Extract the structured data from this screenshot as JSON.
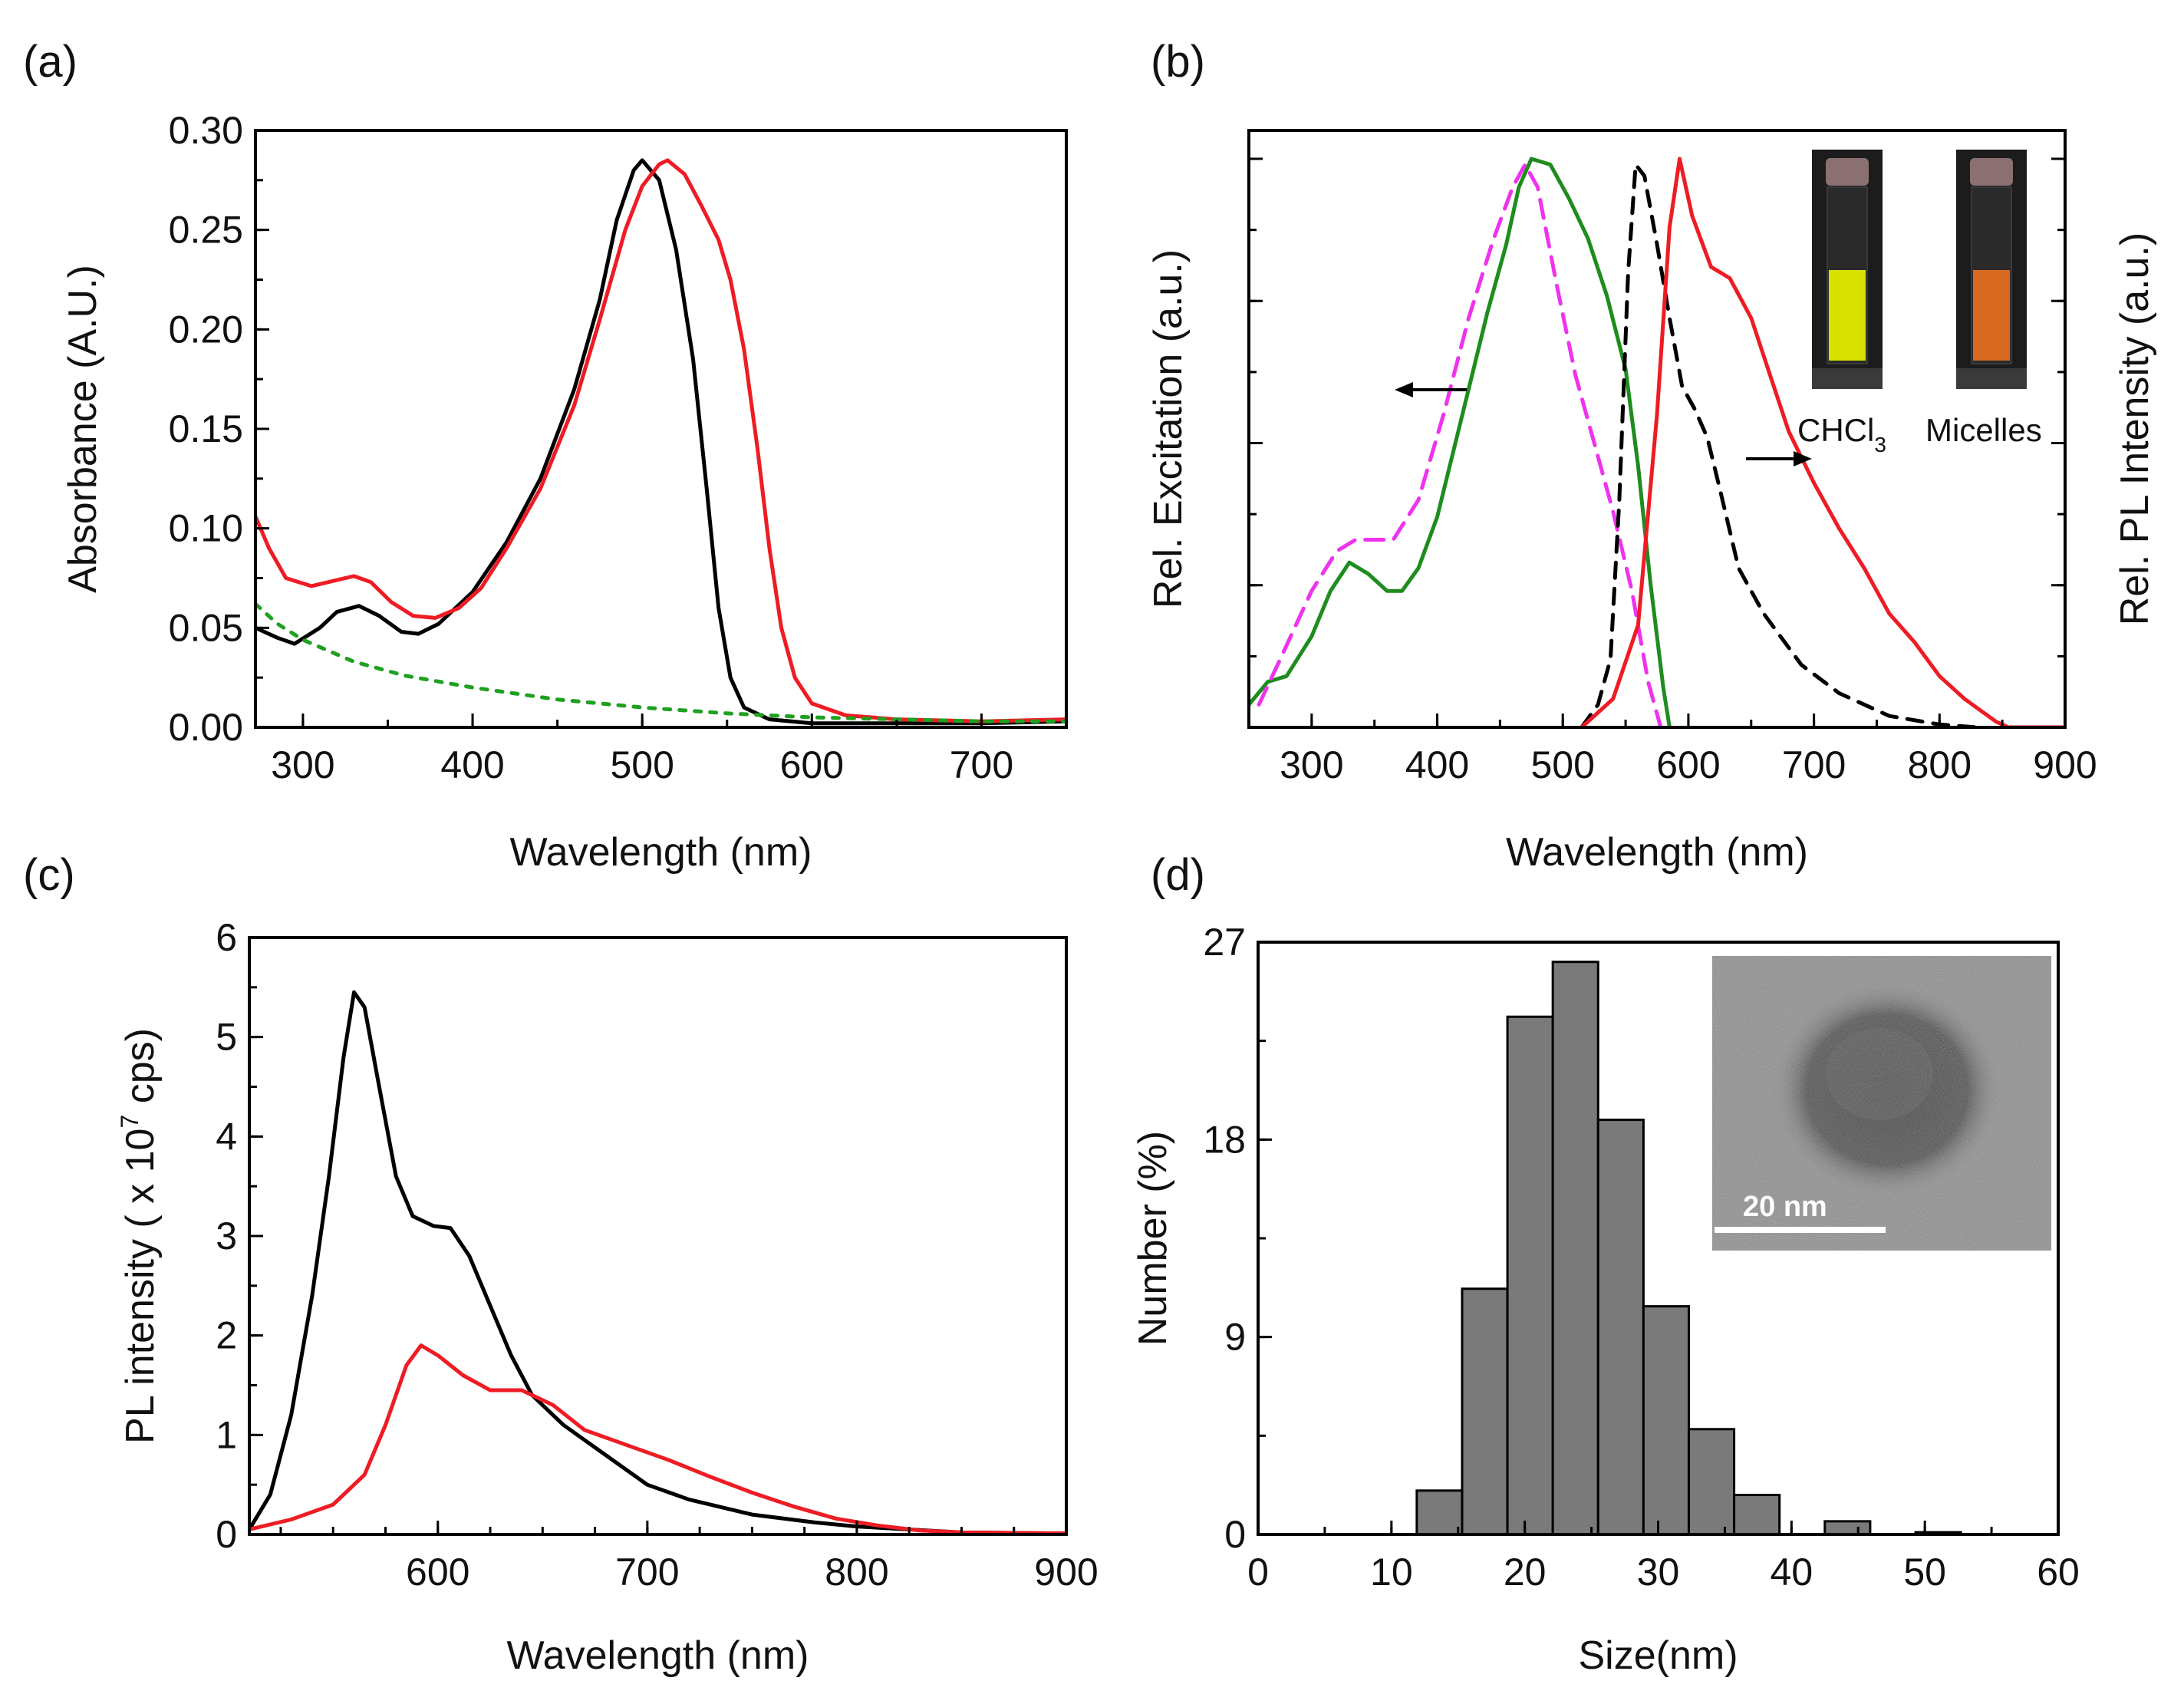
{
  "panels": {
    "a": {
      "label": "(a)"
    },
    "b": {
      "label": "(b)"
    },
    "c": {
      "label": "(c)"
    },
    "d": {
      "label": "(d)"
    }
  },
  "colors": {
    "black": "#000000",
    "red": "#ee1c24",
    "green": "#1e8c1e",
    "magenta": "#ee33ee",
    "green_dotted": "#20a020",
    "bar_fill": "#7a7a7a",
    "vial_yellow": "#d8e000",
    "vial_orange": "#d86a20"
  },
  "chart_data": [
    {
      "id": "a",
      "type": "line",
      "xlabel": "Wavelength (nm)",
      "ylabel": "Absorbance (A.U.)",
      "xlim": [
        272,
        750
      ],
      "ylim": [
        0,
        0.3
      ],
      "xticks": [
        300,
        400,
        500,
        600,
        700
      ],
      "yticks": [
        0.0,
        0.05,
        0.1,
        0.15,
        0.2,
        0.25,
        0.3
      ],
      "ytick_labels": [
        "0.00",
        "0.05",
        "0.10",
        "0.15",
        "0.20",
        "0.25",
        "0.30"
      ],
      "series": [
        {
          "name": "black",
          "color": "#000000",
          "dash": "",
          "points": [
            [
              272,
              0.05
            ],
            [
              285,
              0.045
            ],
            [
              295,
              0.042
            ],
            [
              310,
              0.05
            ],
            [
              320,
              0.058
            ],
            [
              333,
              0.061
            ],
            [
              345,
              0.056
            ],
            [
              358,
              0.048
            ],
            [
              368,
              0.047
            ],
            [
              380,
              0.052
            ],
            [
              400,
              0.068
            ],
            [
              420,
              0.093
            ],
            [
              440,
              0.125
            ],
            [
              460,
              0.17
            ],
            [
              475,
              0.215
            ],
            [
              485,
              0.255
            ],
            [
              495,
              0.28
            ],
            [
              500,
              0.285
            ],
            [
              510,
              0.275
            ],
            [
              520,
              0.24
            ],
            [
              530,
              0.185
            ],
            [
              538,
              0.12
            ],
            [
              545,
              0.06
            ],
            [
              552,
              0.025
            ],
            [
              560,
              0.01
            ],
            [
              575,
              0.004
            ],
            [
              600,
              0.002
            ],
            [
              700,
              0.002
            ],
            [
              750,
              0.003
            ]
          ]
        },
        {
          "name": "red",
          "color": "#ee1c24",
          "dash": "",
          "points": [
            [
              272,
              0.106
            ],
            [
              280,
              0.09
            ],
            [
              290,
              0.075
            ],
            [
              305,
              0.071
            ],
            [
              320,
              0.074
            ],
            [
              330,
              0.076
            ],
            [
              340,
              0.073
            ],
            [
              352,
              0.063
            ],
            [
              365,
              0.056
            ],
            [
              378,
              0.055
            ],
            [
              392,
              0.06
            ],
            [
              405,
              0.07
            ],
            [
              420,
              0.09
            ],
            [
              440,
              0.12
            ],
            [
              460,
              0.162
            ],
            [
              475,
              0.205
            ],
            [
              490,
              0.25
            ],
            [
              500,
              0.272
            ],
            [
              510,
              0.283
            ],
            [
              515,
              0.285
            ],
            [
              525,
              0.278
            ],
            [
              535,
              0.262
            ],
            [
              545,
              0.245
            ],
            [
              552,
              0.225
            ],
            [
              560,
              0.19
            ],
            [
              568,
              0.14
            ],
            [
              575,
              0.09
            ],
            [
              582,
              0.05
            ],
            [
              590,
              0.025
            ],
            [
              600,
              0.012
            ],
            [
              620,
              0.006
            ],
            [
              650,
              0.004
            ],
            [
              700,
              0.003
            ],
            [
              750,
              0.004
            ]
          ]
        },
        {
          "name": "green-dotted",
          "color": "#20a020",
          "dash": "8,12",
          "points": [
            [
              272,
              0.062
            ],
            [
              285,
              0.052
            ],
            [
              300,
              0.044
            ],
            [
              330,
              0.033
            ],
            [
              360,
              0.026
            ],
            [
              400,
              0.02
            ],
            [
              450,
              0.014
            ],
            [
              500,
              0.01
            ],
            [
              550,
              0.007
            ],
            [
              600,
              0.005
            ],
            [
              650,
              0.004
            ],
            [
              700,
              0.003
            ],
            [
              750,
              0.003
            ]
          ]
        }
      ]
    },
    {
      "id": "b",
      "type": "line",
      "xlabel": "Wavelength (nm)",
      "ylabel": "Rel. Excitation (a.u.)",
      "ylabel_right": "Rel. PL Intensity (a.u.)",
      "xlim": [
        250,
        900
      ],
      "ylim": [
        0,
        1.05
      ],
      "xticks": [
        300,
        400,
        500,
        600,
        700,
        800,
        900
      ],
      "yticks_unlabeled": [
        0,
        0.25,
        0.5,
        0.75,
        1.0
      ],
      "annotations": {
        "chcl3": "CHCl",
        "chcl3_sub": "3",
        "micelles": "Micelles"
      },
      "series": [
        {
          "name": "green",
          "color": "#1e8c1e",
          "dash": "",
          "points": [
            [
              250,
              0.04
            ],
            [
              265,
              0.08
            ],
            [
              280,
              0.09
            ],
            [
              300,
              0.16
            ],
            [
              315,
              0.24
            ],
            [
              330,
              0.29
            ],
            [
              345,
              0.27
            ],
            [
              360,
              0.24
            ],
            [
              372,
              0.24
            ],
            [
              385,
              0.28
            ],
            [
              400,
              0.37
            ],
            [
              420,
              0.55
            ],
            [
              440,
              0.73
            ],
            [
              455,
              0.85
            ],
            [
              465,
              0.95
            ],
            [
              475,
              1.0
            ],
            [
              490,
              0.99
            ],
            [
              505,
              0.93
            ],
            [
              520,
              0.86
            ],
            [
              535,
              0.76
            ],
            [
              550,
              0.63
            ],
            [
              560,
              0.46
            ],
            [
              570,
              0.25
            ],
            [
              580,
              0.07
            ],
            [
              585,
              0.0
            ]
          ]
        },
        {
          "name": "magenta-dashed",
          "color": "#ee33ee",
          "dash": "24,14",
          "points": [
            [
              258,
              0.04
            ],
            [
              275,
              0.12
            ],
            [
              300,
              0.24
            ],
            [
              320,
              0.31
            ],
            [
              335,
              0.33
            ],
            [
              365,
              0.33
            ],
            [
              385,
              0.4
            ],
            [
              405,
              0.55
            ],
            [
              425,
              0.72
            ],
            [
              445,
              0.86
            ],
            [
              460,
              0.95
            ],
            [
              470,
              0.99
            ],
            [
              480,
              0.95
            ],
            [
              495,
              0.78
            ],
            [
              510,
              0.62
            ],
            [
              525,
              0.5
            ],
            [
              540,
              0.38
            ],
            [
              555,
              0.24
            ],
            [
              568,
              0.08
            ],
            [
              578,
              0.0
            ]
          ]
        },
        {
          "name": "black-dashed",
          "color": "#000000",
          "dash": "20,14",
          "points": [
            [
              515,
              0.0
            ],
            [
              528,
              0.04
            ],
            [
              538,
              0.12
            ],
            [
              545,
              0.4
            ],
            [
              552,
              0.8
            ],
            [
              558,
              0.99
            ],
            [
              565,
              0.97
            ],
            [
              575,
              0.85
            ],
            [
              585,
              0.72
            ],
            [
              595,
              0.6
            ],
            [
              605,
              0.56
            ],
            [
              615,
              0.51
            ],
            [
              625,
              0.42
            ],
            [
              640,
              0.28
            ],
            [
              660,
              0.2
            ],
            [
              690,
              0.11
            ],
            [
              720,
              0.06
            ],
            [
              760,
              0.02
            ],
            [
              800,
              0.005
            ],
            [
              830,
              0.0
            ]
          ]
        },
        {
          "name": "red",
          "color": "#ee1c24",
          "dash": "",
          "points": [
            [
              515,
              0.0
            ],
            [
              540,
              0.05
            ],
            [
              560,
              0.18
            ],
            [
              575,
              0.55
            ],
            [
              585,
              0.88
            ],
            [
              593,
              1.0
            ],
            [
              603,
              0.9
            ],
            [
              618,
              0.81
            ],
            [
              633,
              0.79
            ],
            [
              650,
              0.72
            ],
            [
              665,
              0.62
            ],
            [
              680,
              0.52
            ],
            [
              700,
              0.43
            ],
            [
              720,
              0.35
            ],
            [
              740,
              0.28
            ],
            [
              760,
              0.2
            ],
            [
              780,
              0.15
            ],
            [
              800,
              0.09
            ],
            [
              820,
              0.05
            ],
            [
              845,
              0.01
            ],
            [
              855,
              0.0
            ],
            [
              900,
              0.0
            ]
          ]
        }
      ]
    },
    {
      "id": "c",
      "type": "line",
      "xlabel": "Wavelength (nm)",
      "ylabel": "PL intensity ( x 10",
      "ylabel_exp": "7",
      "ylabel_tail": "cps)",
      "xlim": [
        510,
        900
      ],
      "ylim": [
        0,
        6
      ],
      "xticks": [
        600,
        700,
        800,
        900
      ],
      "yticks": [
        0,
        1,
        2,
        3,
        4,
        5,
        6
      ],
      "series": [
        {
          "name": "black",
          "color": "#000000",
          "dash": "",
          "points": [
            [
              510,
              0.05
            ],
            [
              520,
              0.4
            ],
            [
              530,
              1.2
            ],
            [
              540,
              2.4
            ],
            [
              548,
              3.6
            ],
            [
              555,
              4.8
            ],
            [
              560,
              5.45
            ],
            [
              565,
              5.3
            ],
            [
              572,
              4.5
            ],
            [
              580,
              3.6
            ],
            [
              588,
              3.2
            ],
            [
              598,
              3.1
            ],
            [
              606,
              3.08
            ],
            [
              615,
              2.8
            ],
            [
              625,
              2.3
            ],
            [
              635,
              1.8
            ],
            [
              645,
              1.4
            ],
            [
              660,
              1.1
            ],
            [
              680,
              0.8
            ],
            [
              700,
              0.5
            ],
            [
              720,
              0.35
            ],
            [
              750,
              0.2
            ],
            [
              780,
              0.12
            ],
            [
              800,
              0.08
            ],
            [
              850,
              0.02
            ],
            [
              900,
              0.01
            ]
          ]
        },
        {
          "name": "red",
          "color": "#ee1c24",
          "dash": "",
          "points": [
            [
              510,
              0.05
            ],
            [
              530,
              0.15
            ],
            [
              550,
              0.3
            ],
            [
              565,
              0.6
            ],
            [
              575,
              1.1
            ],
            [
              585,
              1.7
            ],
            [
              592,
              1.9
            ],
            [
              600,
              1.8
            ],
            [
              612,
              1.6
            ],
            [
              625,
              1.45
            ],
            [
              640,
              1.45
            ],
            [
              655,
              1.3
            ],
            [
              670,
              1.05
            ],
            [
              690,
              0.9
            ],
            [
              710,
              0.75
            ],
            [
              730,
              0.58
            ],
            [
              750,
              0.42
            ],
            [
              770,
              0.28
            ],
            [
              790,
              0.16
            ],
            [
              810,
              0.09
            ],
            [
              830,
              0.04
            ],
            [
              850,
              0.02
            ],
            [
              900,
              0.01
            ]
          ]
        }
      ]
    },
    {
      "id": "d",
      "type": "bar",
      "xlabel": "Size(nm)",
      "ylabel": "Number (%)",
      "xlim": [
        0,
        60
      ],
      "ylim": [
        0,
        27
      ],
      "xticks": [
        0,
        10,
        20,
        30,
        40,
        50,
        60
      ],
      "yticks": [
        0,
        9,
        18,
        27
      ],
      "bin_width": 3.4,
      "bin_lefts": [
        11.9,
        15.3,
        18.7,
        22.1,
        25.5,
        28.9,
        32.3,
        35.7,
        39.1,
        42.5,
        45.9,
        49.3
      ],
      "values": [
        2.0,
        11.2,
        23.6,
        26.1,
        18.9,
        10.4,
        4.8,
        1.8,
        0.0,
        0.6,
        0.0,
        0.1
      ],
      "inset": {
        "scalebar_label": "20 nm"
      }
    }
  ]
}
